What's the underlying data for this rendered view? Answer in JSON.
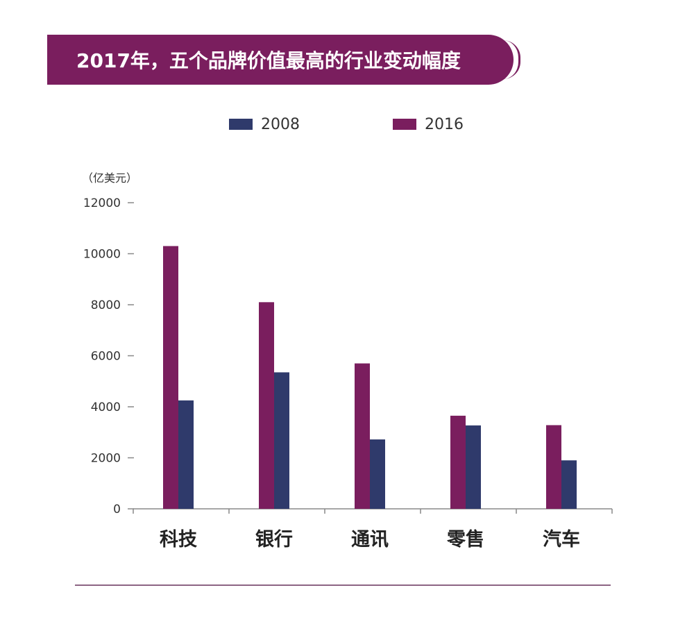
{
  "title": "2017年，五个品牌价值最高的行业变动幅度",
  "unit_label": "（亿美元）",
  "colors": {
    "banner": "#7a1e5e",
    "series_2008": "#2f3a6b",
    "series_2016": "#7a1e5e",
    "axis": "#888888"
  },
  "chart_data": {
    "type": "bar",
    "categories": [
      "科技",
      "银行",
      "通讯",
      "零售",
      "汽车"
    ],
    "series": [
      {
        "name": "2016",
        "color": "#7a1e5e",
        "values": [
          10300,
          8100,
          5700,
          3650,
          3280
        ]
      },
      {
        "name": "2008",
        "color": "#2f3a6b",
        "values": [
          4250,
          5350,
          2720,
          3270,
          1900
        ]
      }
    ],
    "legend_order": [
      "2008",
      "2016"
    ],
    "ylim": [
      0,
      12000
    ],
    "yticks": [
      "0",
      "2000",
      "4000",
      "6000",
      "8000",
      "10000",
      "12000"
    ],
    "ylabel": "（亿美元）",
    "xlabel": "",
    "grid": false,
    "legend_position": "top"
  }
}
